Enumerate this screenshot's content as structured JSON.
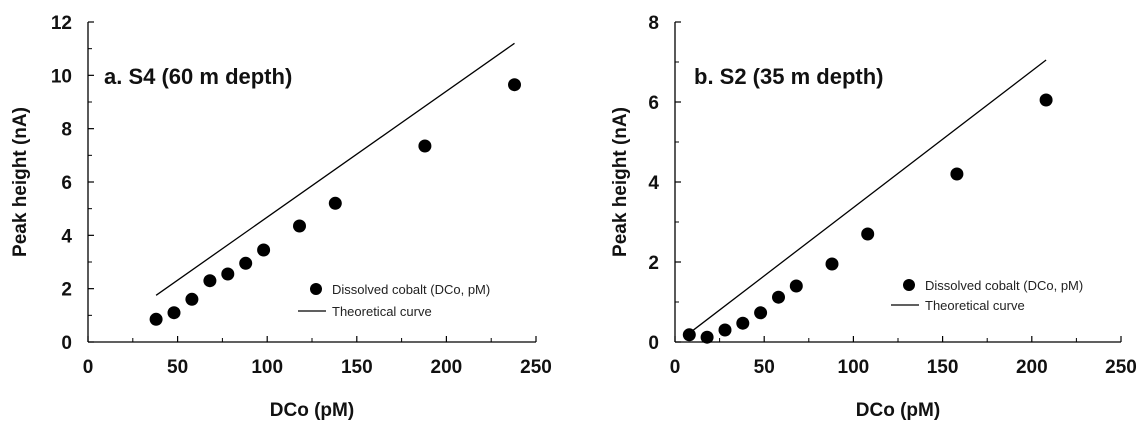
{
  "chart_data": [
    {
      "type": "scatter",
      "title": "a. S4 (60 m depth)",
      "xlabel": "DCo (pM)",
      "ylabel": "Peak height (nA)",
      "xlim": [
        0,
        250
      ],
      "ylim": [
        0,
        12
      ],
      "xticks": [
        0,
        50,
        100,
        150,
        200,
        250
      ],
      "yticks": [
        0,
        2,
        4,
        6,
        8,
        10,
        12
      ],
      "legend_position": "lower-right",
      "series": [
        {
          "name": "Dissolved cobalt (DCo, pM)",
          "kind": "points",
          "color": "#000000",
          "x": [
            38,
            48,
            58,
            68,
            78,
            88,
            98,
            118,
            138,
            188,
            238
          ],
          "y": [
            0.85,
            1.1,
            1.6,
            2.3,
            2.55,
            2.95,
            3.45,
            4.35,
            5.2,
            7.35,
            9.65
          ]
        },
        {
          "name": "Theoretical curve",
          "kind": "line",
          "color": "#000000",
          "x": [
            38,
            238
          ],
          "y": [
            1.75,
            11.2
          ]
        }
      ]
    },
    {
      "type": "scatter",
      "title": "b. S2 (35 m depth)",
      "xlabel": "DCo (pM)",
      "ylabel": "Peak height (nA)",
      "xlim": [
        0,
        250
      ],
      "ylim": [
        0,
        8
      ],
      "xticks": [
        0,
        50,
        100,
        150,
        200,
        250
      ],
      "yticks": [
        0,
        2,
        4,
        6,
        8
      ],
      "legend_position": "lower-right",
      "series": [
        {
          "name": "Dissolved cobalt (DCo, pM)",
          "kind": "points",
          "color": "#000000",
          "x": [
            8,
            18,
            28,
            38,
            48,
            58,
            68,
            88,
            108,
            158,
            208
          ],
          "y": [
            0.18,
            0.12,
            0.3,
            0.47,
            0.73,
            1.12,
            1.4,
            1.95,
            2.7,
            4.2,
            6.05
          ]
        },
        {
          "name": "Theoretical curve",
          "kind": "line",
          "color": "#000000",
          "x": [
            8,
            208
          ],
          "y": [
            0.22,
            7.05
          ]
        }
      ]
    }
  ]
}
